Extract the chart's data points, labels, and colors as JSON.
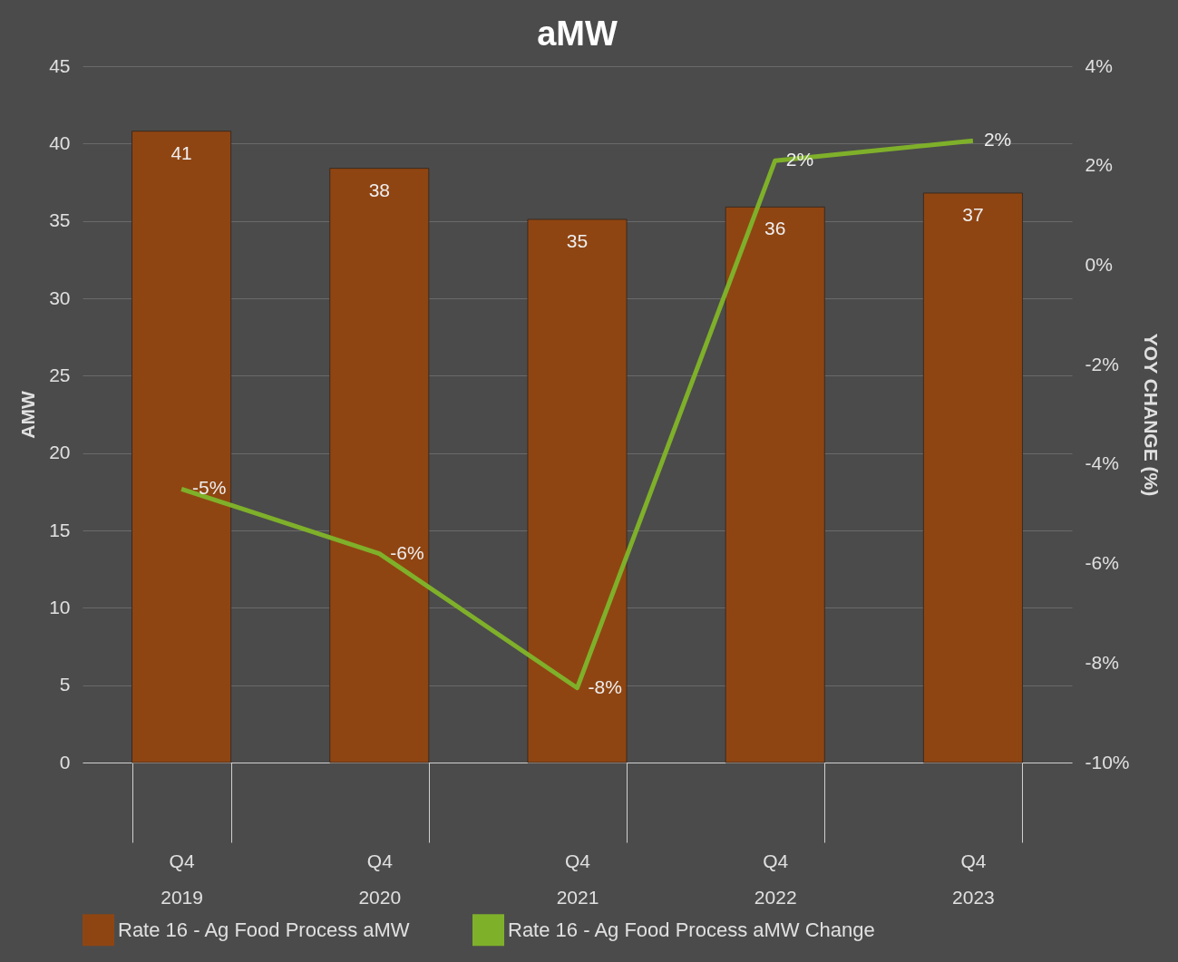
{
  "chart_data": {
    "type": "bar",
    "title": "aMW",
    "ylabel": "AMW",
    "y2label": "YOY CHANGE (%)",
    "categories": [
      "Q4 2019",
      "Q4 2020",
      "Q4 2021",
      "Q4 2022",
      "Q4 2023"
    ],
    "series": [
      {
        "name": "Rate 16 - Ag Food Process aMW",
        "color": "#8f4512",
        "values": [
          40.8,
          38.4,
          35.1,
          35.9,
          36.8
        ],
        "value_labels": [
          "41",
          "38",
          "35",
          "36",
          "37"
        ]
      },
      {
        "name": "Rate 16 - Ag Food Process aMW Change",
        "type": "line",
        "axis": "y2",
        "color": "#7fb02a",
        "values": [
          -4.5,
          -5.8,
          -8.5,
          2.1,
          2.5
        ],
        "value_labels": [
          "-5%",
          "-6%",
          "-8%",
          "2%",
          "2%"
        ]
      }
    ],
    "ylim": [
      0,
      45
    ],
    "yticks": [
      0,
      5,
      10,
      15,
      20,
      25,
      30,
      35,
      40,
      45
    ],
    "y2lim": [
      -10,
      4
    ],
    "y2ticks": [
      {
        "value": -10,
        "label": "-10%"
      },
      {
        "value": -8,
        "label": "-8%"
      },
      {
        "value": -6,
        "label": "-6%"
      },
      {
        "value": -4,
        "label": "-4%"
      },
      {
        "value": -2,
        "label": "-2%"
      },
      {
        "value": 0,
        "label": "0%"
      },
      {
        "value": 2,
        "label": "2%"
      },
      {
        "value": 4,
        "label": "4%"
      }
    ],
    "grid": "y",
    "legend": "bottom",
    "marker": "none",
    "line_style": "solid"
  }
}
